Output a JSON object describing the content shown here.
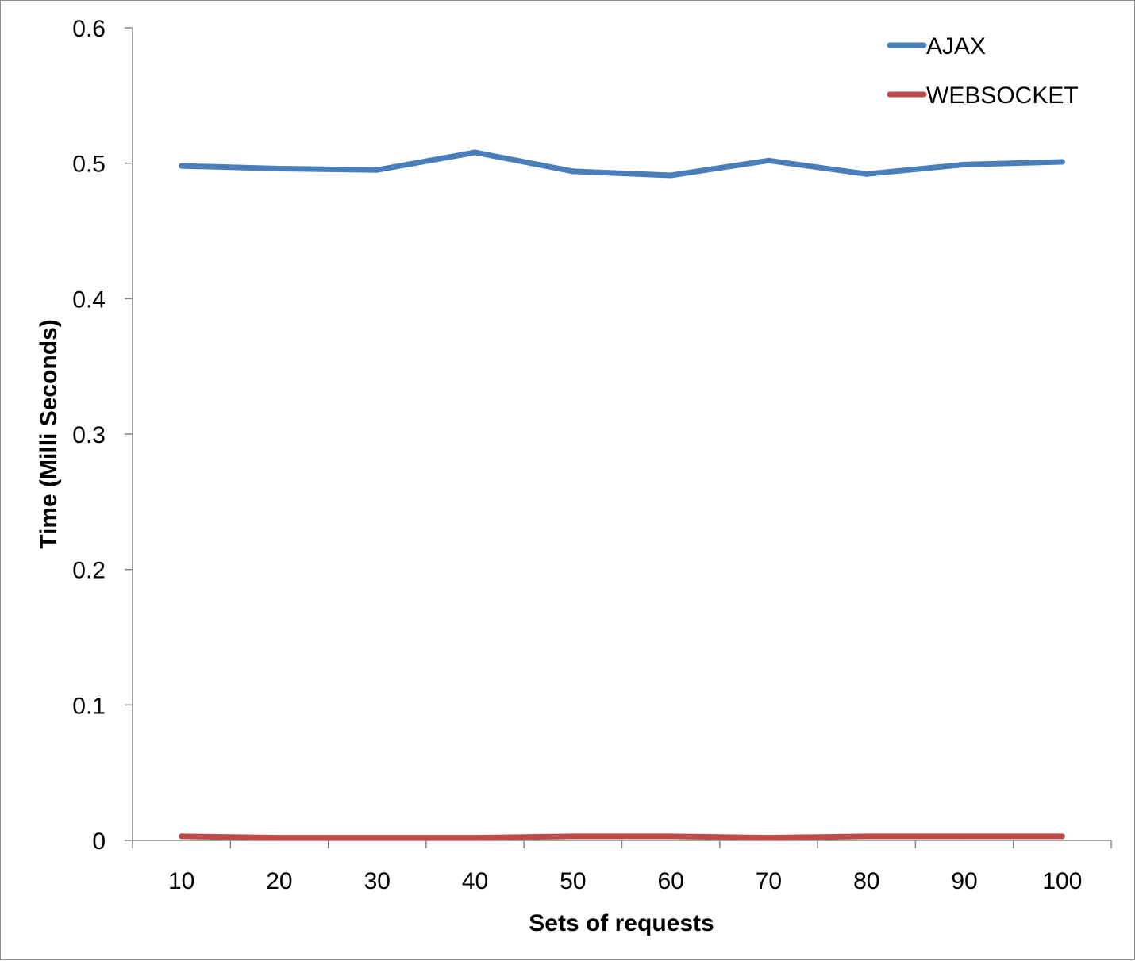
{
  "chart_data": {
    "type": "line",
    "title": "",
    "xlabel": "Sets of requests",
    "ylabel": "Time (Milli Seconds)",
    "categories": [
      "10",
      "20",
      "30",
      "40",
      "50",
      "60",
      "70",
      "80",
      "90",
      "100"
    ],
    "yticks": [
      "0",
      "0.1",
      "0.2",
      "0.3",
      "0.4",
      "0.5",
      "0.6"
    ],
    "ylim": [
      0,
      0.6
    ],
    "grid": false,
    "legend_position": "top-right",
    "series": [
      {
        "name": "AJAX",
        "color": "#4a7ebb",
        "values": [
          0.498,
          0.496,
          0.495,
          0.508,
          0.494,
          0.491,
          0.502,
          0.492,
          0.499,
          0.501
        ]
      },
      {
        "name": "WEBSOCKET",
        "color": "#be4b48",
        "values": [
          0.003,
          0.002,
          0.002,
          0.002,
          0.003,
          0.003,
          0.002,
          0.003,
          0.003,
          0.003
        ]
      }
    ]
  }
}
